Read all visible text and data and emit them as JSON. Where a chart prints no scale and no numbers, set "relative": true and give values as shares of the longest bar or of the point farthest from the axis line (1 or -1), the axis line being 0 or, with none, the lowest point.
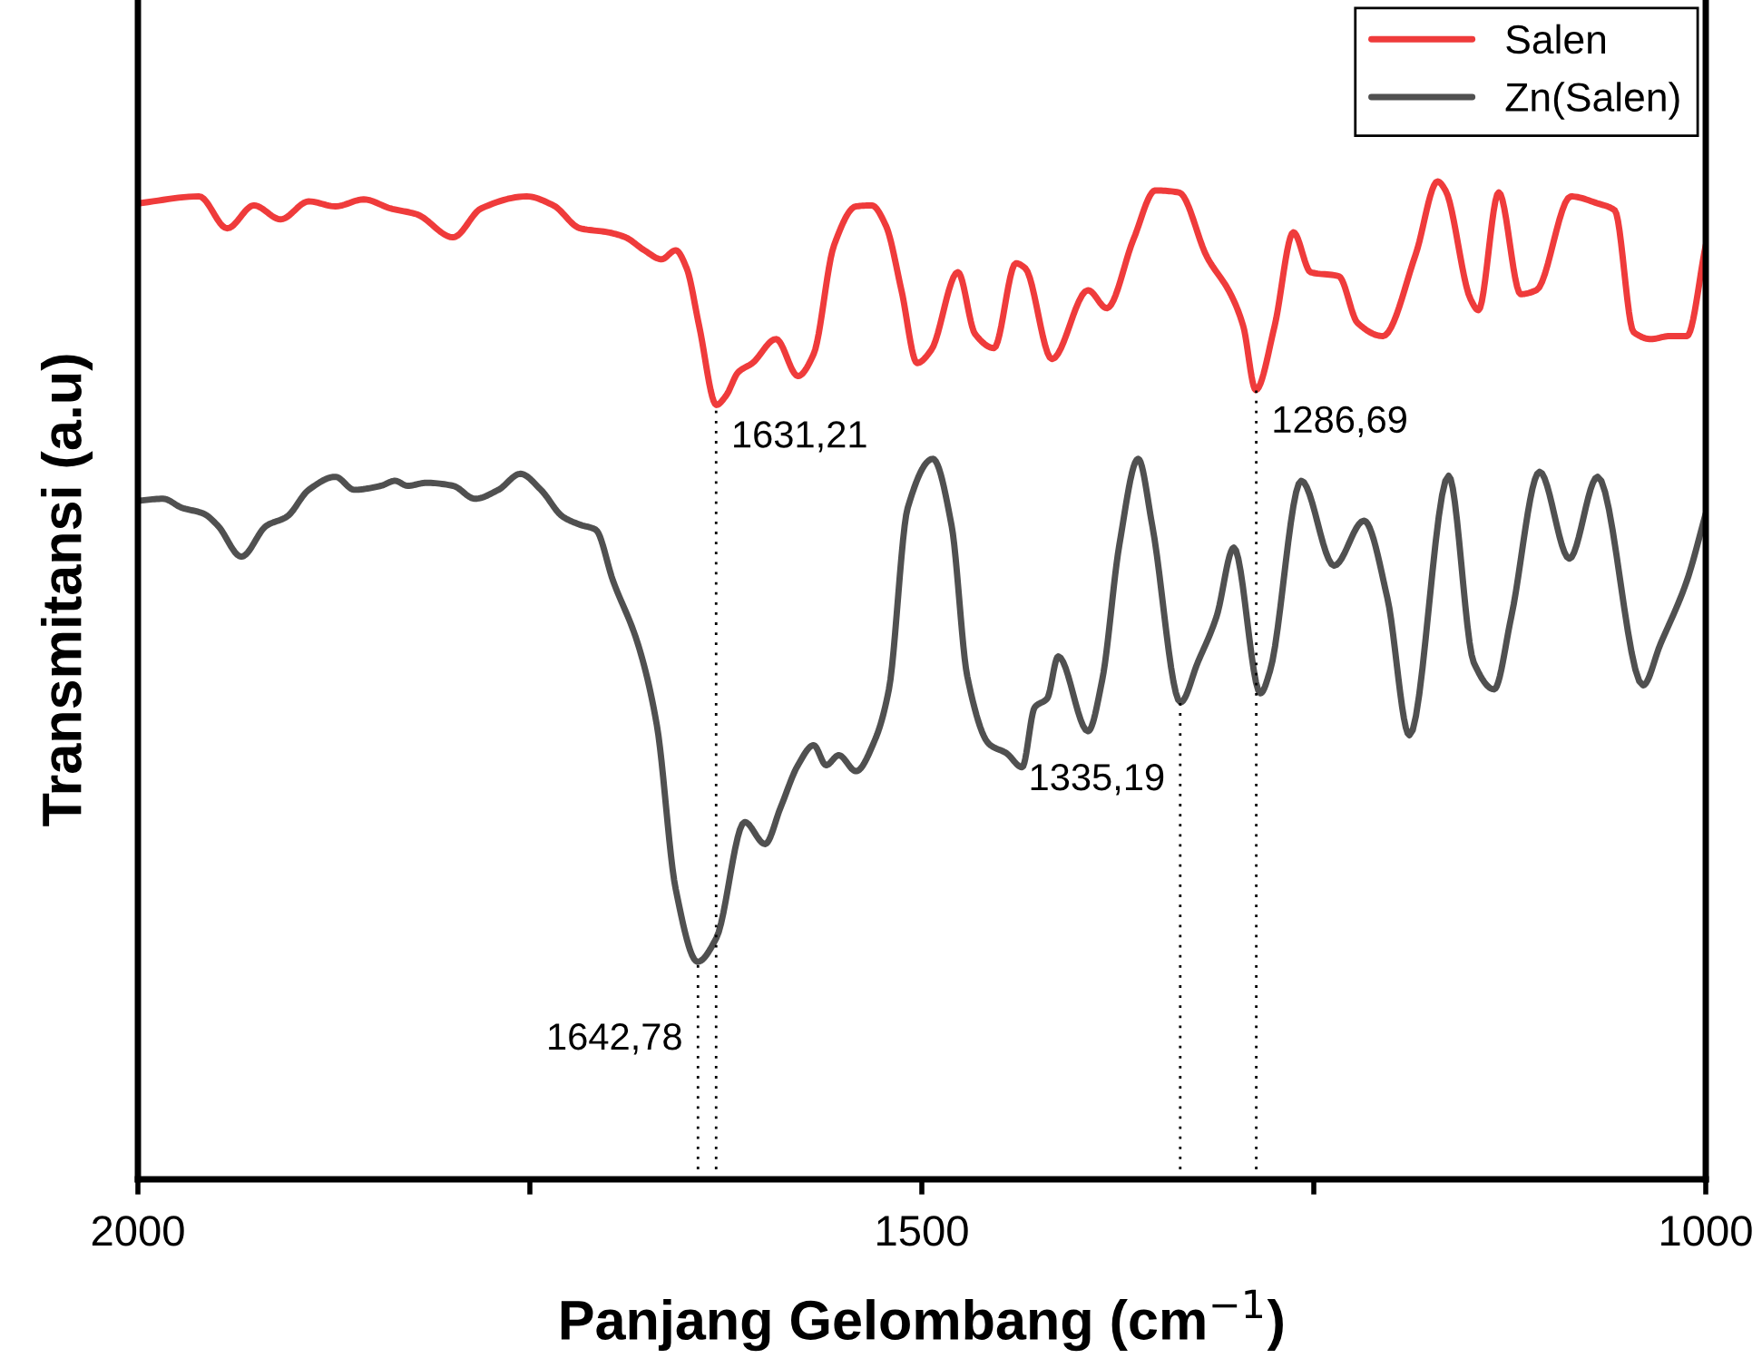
{
  "chart_data": {
    "type": "line",
    "relative": true,
    "xlabel": "Panjang Gelombang (cm$^{−1}$)",
    "ylabel": "Transmitansi (a.u)",
    "xlim": [
      2000,
      1000
    ],
    "xticks": [
      2000,
      {
        "value": 1750,
        "label": null
      },
      1500,
      {
        "value": 1250,
        "label": null
      },
      1000
    ],
    "legend": "top right",
    "grid": false,
    "line_style": "solid",
    "marker": "none",
    "series": [
      {
        "name": "Salen",
        "color": "#ef3b3b",
        "x": [
          2000,
          1961,
          1943,
          1926,
          1909,
          1891,
          1874,
          1856,
          1839,
          1822,
          1799,
          1781,
          1752,
          1735,
          1718,
          1700,
          1689,
          1677,
          1666,
          1657,
          1650,
          1642,
          1631,
          1625,
          1617,
          1608,
          1593,
          1579,
          1569,
          1556,
          1542,
          1532,
          1523,
          1513,
          1503,
          1494,
          1477,
          1466,
          1454,
          1440,
          1434,
          1417,
          1394,
          1382,
          1365,
          1351,
          1336,
          1318,
          1303,
          1295,
          1287,
          1275,
          1263,
          1252,
          1234,
          1222,
          1206,
          1185,
          1171,
          1166,
          1150,
          1145,
          1132,
          1118,
          1108,
          1086,
          1069,
          1058,
          1046,
          1035,
          1023,
          1012,
          1000
        ],
        "values": [
          0.978,
          0.985,
          0.953,
          0.976,
          0.962,
          0.98,
          0.975,
          0.982,
          0.973,
          0.967,
          0.944,
          0.973,
          0.985,
          0.976,
          0.953,
          0.949,
          0.944,
          0.931,
          0.922,
          0.931,
          0.913,
          0.855,
          0.776,
          0.785,
          0.809,
          0.818,
          0.842,
          0.805,
          0.827,
          0.936,
          0.975,
          0.976,
          0.956,
          0.891,
          0.818,
          0.831,
          0.909,
          0.847,
          0.833,
          0.918,
          0.913,
          0.822,
          0.891,
          0.873,
          0.942,
          0.991,
          0.989,
          0.924,
          0.887,
          0.855,
          0.791,
          0.855,
          0.949,
          0.909,
          0.905,
          0.858,
          0.845,
          0.927,
          1.0,
          0.991,
          0.882,
          0.871,
          0.989,
          0.887,
          0.891,
          0.985,
          0.978,
          0.971,
          0.849,
          0.842,
          0.845,
          0.845,
          0.936
        ]
      },
      {
        "name": "Zn(Salen)",
        "color": "#505050",
        "x": [
          2000,
          1984,
          1972,
          1958,
          1949,
          1934,
          1918,
          1905,
          1891,
          1874,
          1862,
          1845,
          1836,
          1828,
          1816,
          1799,
          1785,
          1770,
          1756,
          1743,
          1729,
          1718,
          1708,
          1697,
          1681,
          1669,
          1657,
          1643,
          1631,
          1613,
          1600,
          1590,
          1579,
          1569,
          1561,
          1553,
          1542,
          1530,
          1521,
          1509,
          1493,
          1481,
          1471,
          1457,
          1446,
          1436,
          1428,
          1420,
          1413,
          1394,
          1385,
          1374,
          1362,
          1353,
          1335,
          1324,
          1312,
          1301,
          1284,
          1278,
          1258,
          1237,
          1218,
          1203,
          1189,
          1164,
          1148,
          1135,
          1124,
          1106,
          1087,
          1069,
          1040,
          1029,
          1012,
          1000
        ],
        "values": [
          0.68,
          0.682,
          0.673,
          0.667,
          0.655,
          0.624,
          0.655,
          0.664,
          0.691,
          0.704,
          0.691,
          0.695,
          0.7,
          0.695,
          0.698,
          0.695,
          0.682,
          0.691,
          0.707,
          0.691,
          0.664,
          0.656,
          0.651,
          0.6,
          0.536,
          0.455,
          0.291,
          0.218,
          0.242,
          0.358,
          0.336,
          0.373,
          0.415,
          0.435,
          0.415,
          0.425,
          0.409,
          0.44,
          0.491,
          0.673,
          0.722,
          0.655,
          0.504,
          0.436,
          0.427,
          0.413,
          0.473,
          0.482,
          0.524,
          0.449,
          0.5,
          0.636,
          0.722,
          0.655,
          0.478,
          0.518,
          0.564,
          0.633,
          0.487,
          0.509,
          0.7,
          0.615,
          0.66,
          0.582,
          0.445,
          0.705,
          0.518,
          0.491,
          0.564,
          0.709,
          0.622,
          0.704,
          0.495,
          0.536,
          0.6,
          0.667
        ]
      }
    ],
    "ref_lines": [
      {
        "axis": "x",
        "value": 1642.78,
        "label": "1642,78",
        "color": "#000000",
        "line_style": "dotted"
      },
      {
        "axis": "x",
        "value": 1631.21,
        "label": "1631,21",
        "color": "#000000",
        "line_style": "dotted"
      },
      {
        "axis": "x",
        "value": 1335.19,
        "label": "1335,19",
        "color": "#000000",
        "line_style": "dotted"
      },
      {
        "axis": "x",
        "value": 1286.69,
        "label": "1286,69",
        "color": "#000000",
        "line_style": "dotted"
      }
    ]
  }
}
